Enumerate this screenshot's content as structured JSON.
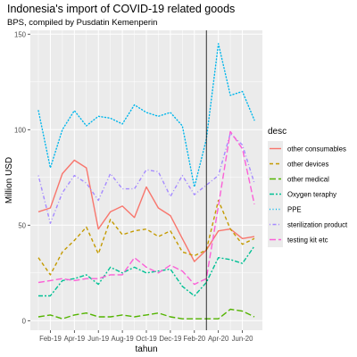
{
  "chart_data": {
    "type": "line",
    "title": "Indonesia's import of COVID-19 related goods",
    "subtitle": "BPS, compiled by Pusdatin Kemenperin",
    "xlabel": "tahun",
    "ylabel": "Million USD",
    "x": [
      "2019-01",
      "2019-02",
      "2019-03",
      "2019-04",
      "2019-05",
      "2019-06",
      "2019-07",
      "2019-08",
      "2019-09",
      "2019-10",
      "2019-11",
      "2019-12",
      "2020-01",
      "2020-02",
      "2020-03",
      "2020-04",
      "2020-05",
      "2020-06",
      "2020-07"
    ],
    "x_tick_labels": [
      {
        "x": "2019-02",
        "label": "Feb-19"
      },
      {
        "x": "2019-04",
        "label": "Apr-19"
      },
      {
        "x": "2019-06",
        "label": "Jun-19"
      },
      {
        "x": "2019-08",
        "label": "Aug-19"
      },
      {
        "x": "2019-10",
        "label": "Oct-19"
      },
      {
        "x": "2019-12",
        "label": "Dec-19"
      },
      {
        "x": "2020-02",
        "label": "Feb-20"
      },
      {
        "x": "2020-04",
        "label": "Apr-20"
      },
      {
        "x": "2020-06",
        "label": "Jun-20"
      }
    ],
    "y_ticks": [
      0,
      50,
      100,
      150
    ],
    "ylim": [
      -5,
      152
    ],
    "grid": true,
    "legend": {
      "title": "desc",
      "position": "right"
    },
    "reference_line": {
      "x": "2020-03",
      "style": "vertical solid"
    },
    "series": [
      {
        "name": "other consumables",
        "color": "#F8766D",
        "dash": "solid",
        "values": [
          57,
          59,
          77,
          84,
          80,
          48,
          57,
          60,
          54,
          70,
          59,
          55,
          43,
          31,
          37,
          47,
          48,
          43,
          44
        ]
      },
      {
        "name": "other devices",
        "color": "#C49A00",
        "dash": "dashed",
        "values": [
          33,
          24,
          36,
          42,
          49,
          35,
          53,
          45,
          47,
          48,
          44,
          47,
          36,
          34,
          37,
          63,
          48,
          40,
          43
        ]
      },
      {
        "name": "other medical",
        "color": "#53B400",
        "dash": "longdash",
        "values": [
          2,
          3,
          1,
          3,
          4,
          2,
          2,
          3,
          2,
          3,
          4,
          2,
          1,
          1,
          1,
          1,
          6,
          5,
          2
        ]
      },
      {
        "name": "Oxygen teraphy",
        "color": "#00C094",
        "dash": "twodash",
        "values": [
          13,
          13,
          21,
          22,
          24,
          19,
          28,
          25,
          28,
          25,
          26,
          27,
          18,
          13,
          20,
          33,
          32,
          30,
          39
        ]
      },
      {
        "name": "PPE",
        "color": "#00B6EB",
        "dash": "dotted",
        "values": [
          110,
          80,
          100,
          110,
          102,
          107,
          106,
          103,
          113,
          109,
          107,
          109,
          102,
          70,
          95,
          145,
          118,
          120,
          105
        ]
      },
      {
        "name": "sterilization product",
        "color": "#A58AFF",
        "dash": "dotdash",
        "values": [
          76,
          51,
          67,
          76,
          72,
          63,
          77,
          69,
          69,
          79,
          78,
          65,
          76,
          66,
          71,
          76,
          98,
          92,
          72
        ]
      },
      {
        "name": "testing kit etc",
        "color": "#FB61D7",
        "dash": "longdash",
        "values": [
          20,
          21,
          22,
          21,
          22,
          22,
          24,
          24,
          33,
          28,
          25,
          29,
          26,
          19,
          22,
          60,
          99,
          90,
          61
        ]
      }
    ]
  }
}
